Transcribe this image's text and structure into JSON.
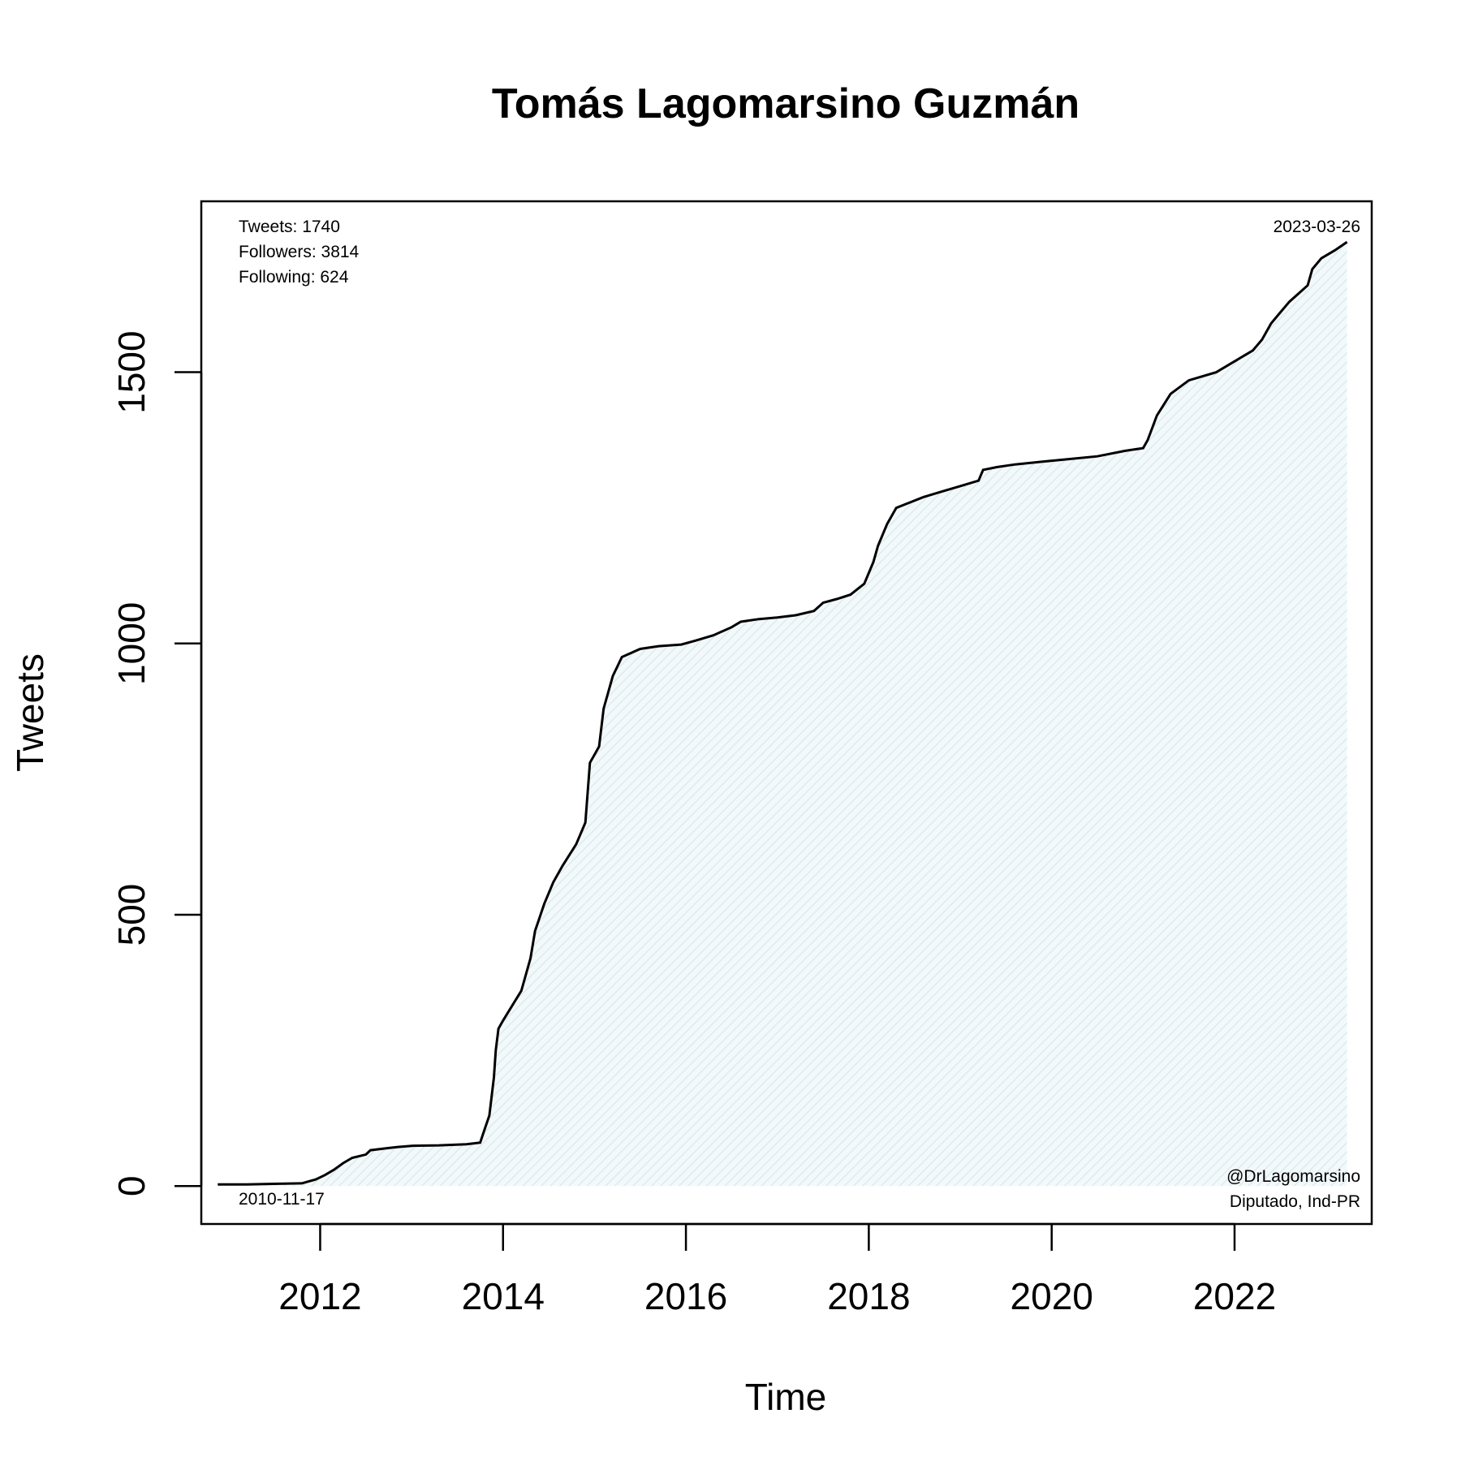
{
  "chart_data": {
    "type": "area",
    "title": "Tomás Lagomarsino Guzmán",
    "xlabel": "Time",
    "ylabel": "Tweets",
    "xlim": [
      2010.7,
      2023.5
    ],
    "ylim": [
      -70,
      1815
    ],
    "x_ticks": [
      {
        "value": 2012,
        "label": "2012"
      },
      {
        "value": 2014,
        "label": "2014"
      },
      {
        "value": 2016,
        "label": "2016"
      },
      {
        "value": 2018,
        "label": "2018"
      },
      {
        "value": 2020,
        "label": "2020"
      },
      {
        "value": 2022,
        "label": "2022"
      }
    ],
    "y_ticks": [
      {
        "value": 0,
        "label": "0"
      },
      {
        "value": 500,
        "label": "500"
      },
      {
        "value": 1000,
        "label": "1000"
      },
      {
        "value": 1500,
        "label": "1500"
      }
    ],
    "grid": false,
    "legend": "none",
    "fill_color": "#e8f4f6",
    "line_color": "#000000",
    "annotations": {
      "stats": [
        "Tweets: 1740",
        "Followers: 3814",
        "Following: 624"
      ],
      "end_date": "2023-03-26",
      "start_date": "2010-11-17",
      "handle": "@DrLagomarsino",
      "affiliation": "Diputado, Ind-PR"
    },
    "series": [
      {
        "x": [
          2010.88,
          2011.2,
          2011.5,
          2011.8,
          2011.95,
          2012.05,
          2012.15,
          2012.25,
          2012.35,
          2012.5,
          2012.55,
          2012.75,
          2012.85,
          2013.0,
          2013.3,
          2013.6,
          2013.75,
          2013.8,
          2013.85,
          2013.9,
          2013.92,
          2013.95,
          2014.0,
          2014.2,
          2014.3,
          2014.35,
          2014.45,
          2014.55,
          2014.65,
          2014.8,
          2014.9,
          2014.95,
          2015.05,
          2015.1,
          2015.2,
          2015.3,
          2015.5,
          2015.7,
          2015.95,
          2016.1,
          2016.3,
          2016.5,
          2016.6,
          2016.8,
          2017.0,
          2017.2,
          2017.4,
          2017.5,
          2017.65,
          2017.8,
          2017.95,
          2018.05,
          2018.1,
          2018.2,
          2018.3,
          2018.45,
          2018.6,
          2018.8,
          2019.0,
          2019.2,
          2019.25,
          2019.4,
          2019.6,
          2019.9,
          2020.2,
          2020.5,
          2020.8,
          2021.0,
          2021.05,
          2021.15,
          2021.3,
          2021.5,
          2021.8,
          2022.0,
          2022.2,
          2022.3,
          2022.4,
          2022.5,
          2022.6,
          2022.7,
          2022.8,
          2022.85,
          2022.95,
          2023.1,
          2023.23
        ],
        "y": [
          3,
          3,
          4,
          5,
          12,
          20,
          30,
          42,
          52,
          58,
          66,
          70,
          72,
          74,
          75,
          77,
          80,
          105,
          130,
          200,
          250,
          290,
          305,
          360,
          420,
          470,
          520,
          560,
          590,
          630,
          670,
          780,
          810,
          880,
          940,
          975,
          990,
          995,
          998,
          1005,
          1015,
          1030,
          1040,
          1045,
          1048,
          1052,
          1060,
          1075,
          1082,
          1090,
          1110,
          1150,
          1180,
          1220,
          1250,
          1260,
          1270,
          1280,
          1290,
          1300,
          1320,
          1325,
          1330,
          1335,
          1340,
          1345,
          1355,
          1360,
          1375,
          1420,
          1460,
          1485,
          1500,
          1520,
          1540,
          1560,
          1590,
          1610,
          1630,
          1645,
          1660,
          1690,
          1710,
          1725,
          1740
        ]
      }
    ]
  }
}
